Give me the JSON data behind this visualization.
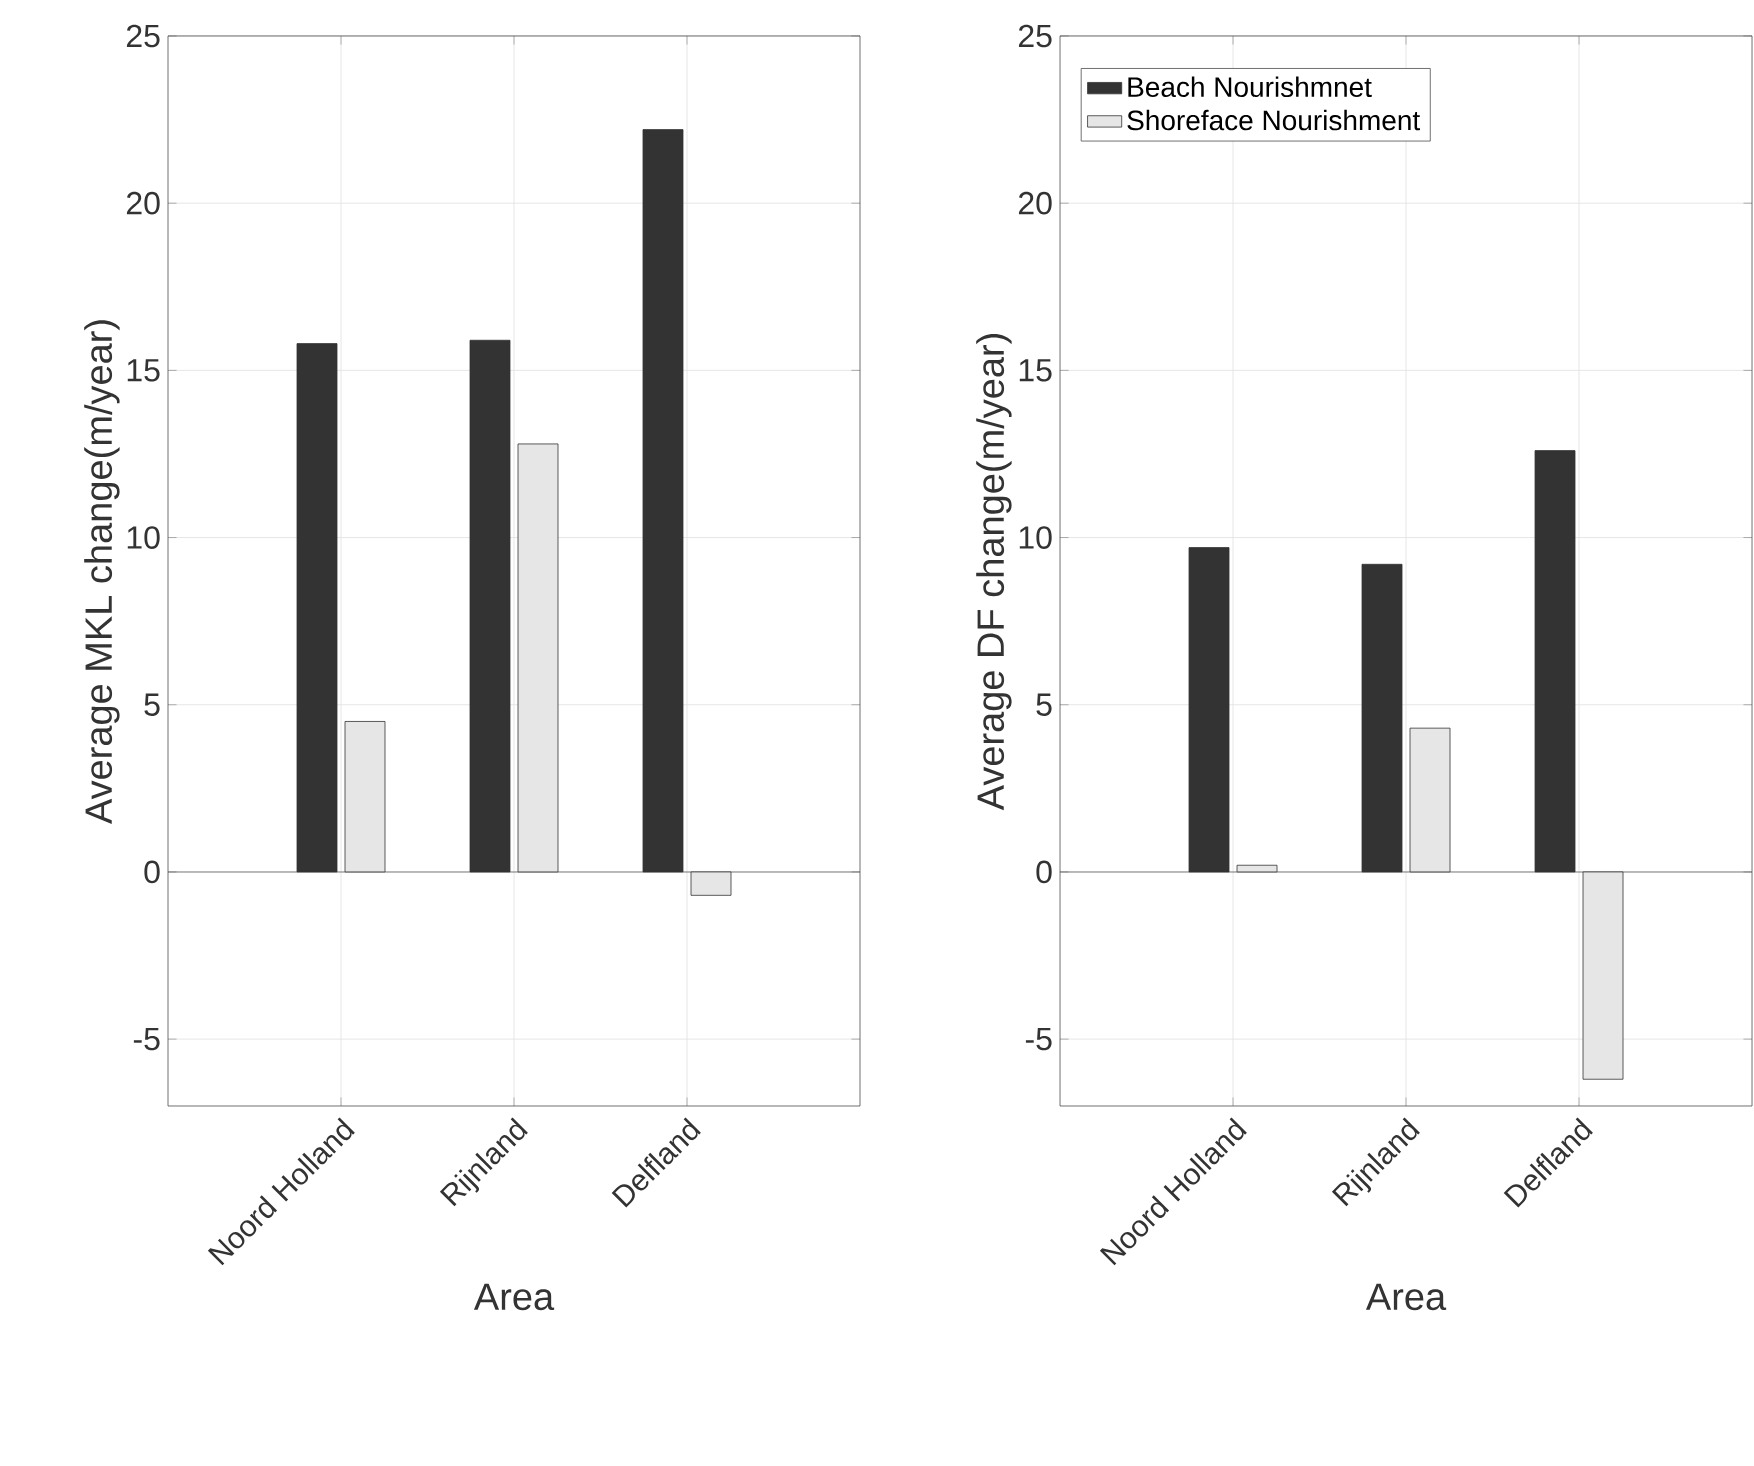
{
  "chart_data": [
    {
      "type": "bar",
      "categories": [
        "Noord Holland",
        "Rijnland",
        "Delfland"
      ],
      "xlabel": "Area",
      "ylabel": "Average MKL change(m/year)",
      "ylim": [
        -7,
        25
      ],
      "yticks": [
        -5,
        0,
        5,
        10,
        15,
        20,
        25
      ],
      "grid": true,
      "series": [
        {
          "color": "#333333",
          "values": [
            15.8,
            15.9,
            22.2
          ]
        },
        {
          "color": "#e6e6e6",
          "values": [
            4.5,
            12.8,
            -0.7
          ]
        }
      ]
    },
    {
      "type": "bar",
      "categories": [
        "Noord Holland",
        "Rijnland",
        "Delfland"
      ],
      "xlabel": "Area",
      "ylabel": "Average DF change(m/year)",
      "ylim": [
        -7,
        25
      ],
      "yticks": [
        -5,
        0,
        5,
        10,
        15,
        20,
        25
      ],
      "grid": true,
      "legend": "top left",
      "series": [
        {
          "name": "Beach Nourishmnet",
          "color": "#333333",
          "values": [
            9.7,
            9.2,
            12.6
          ]
        },
        {
          "name": "Shoreface Nourishment",
          "color": "#e6e6e6",
          "values": [
            0.2,
            4.3,
            -6.2
          ]
        }
      ]
    }
  ]
}
